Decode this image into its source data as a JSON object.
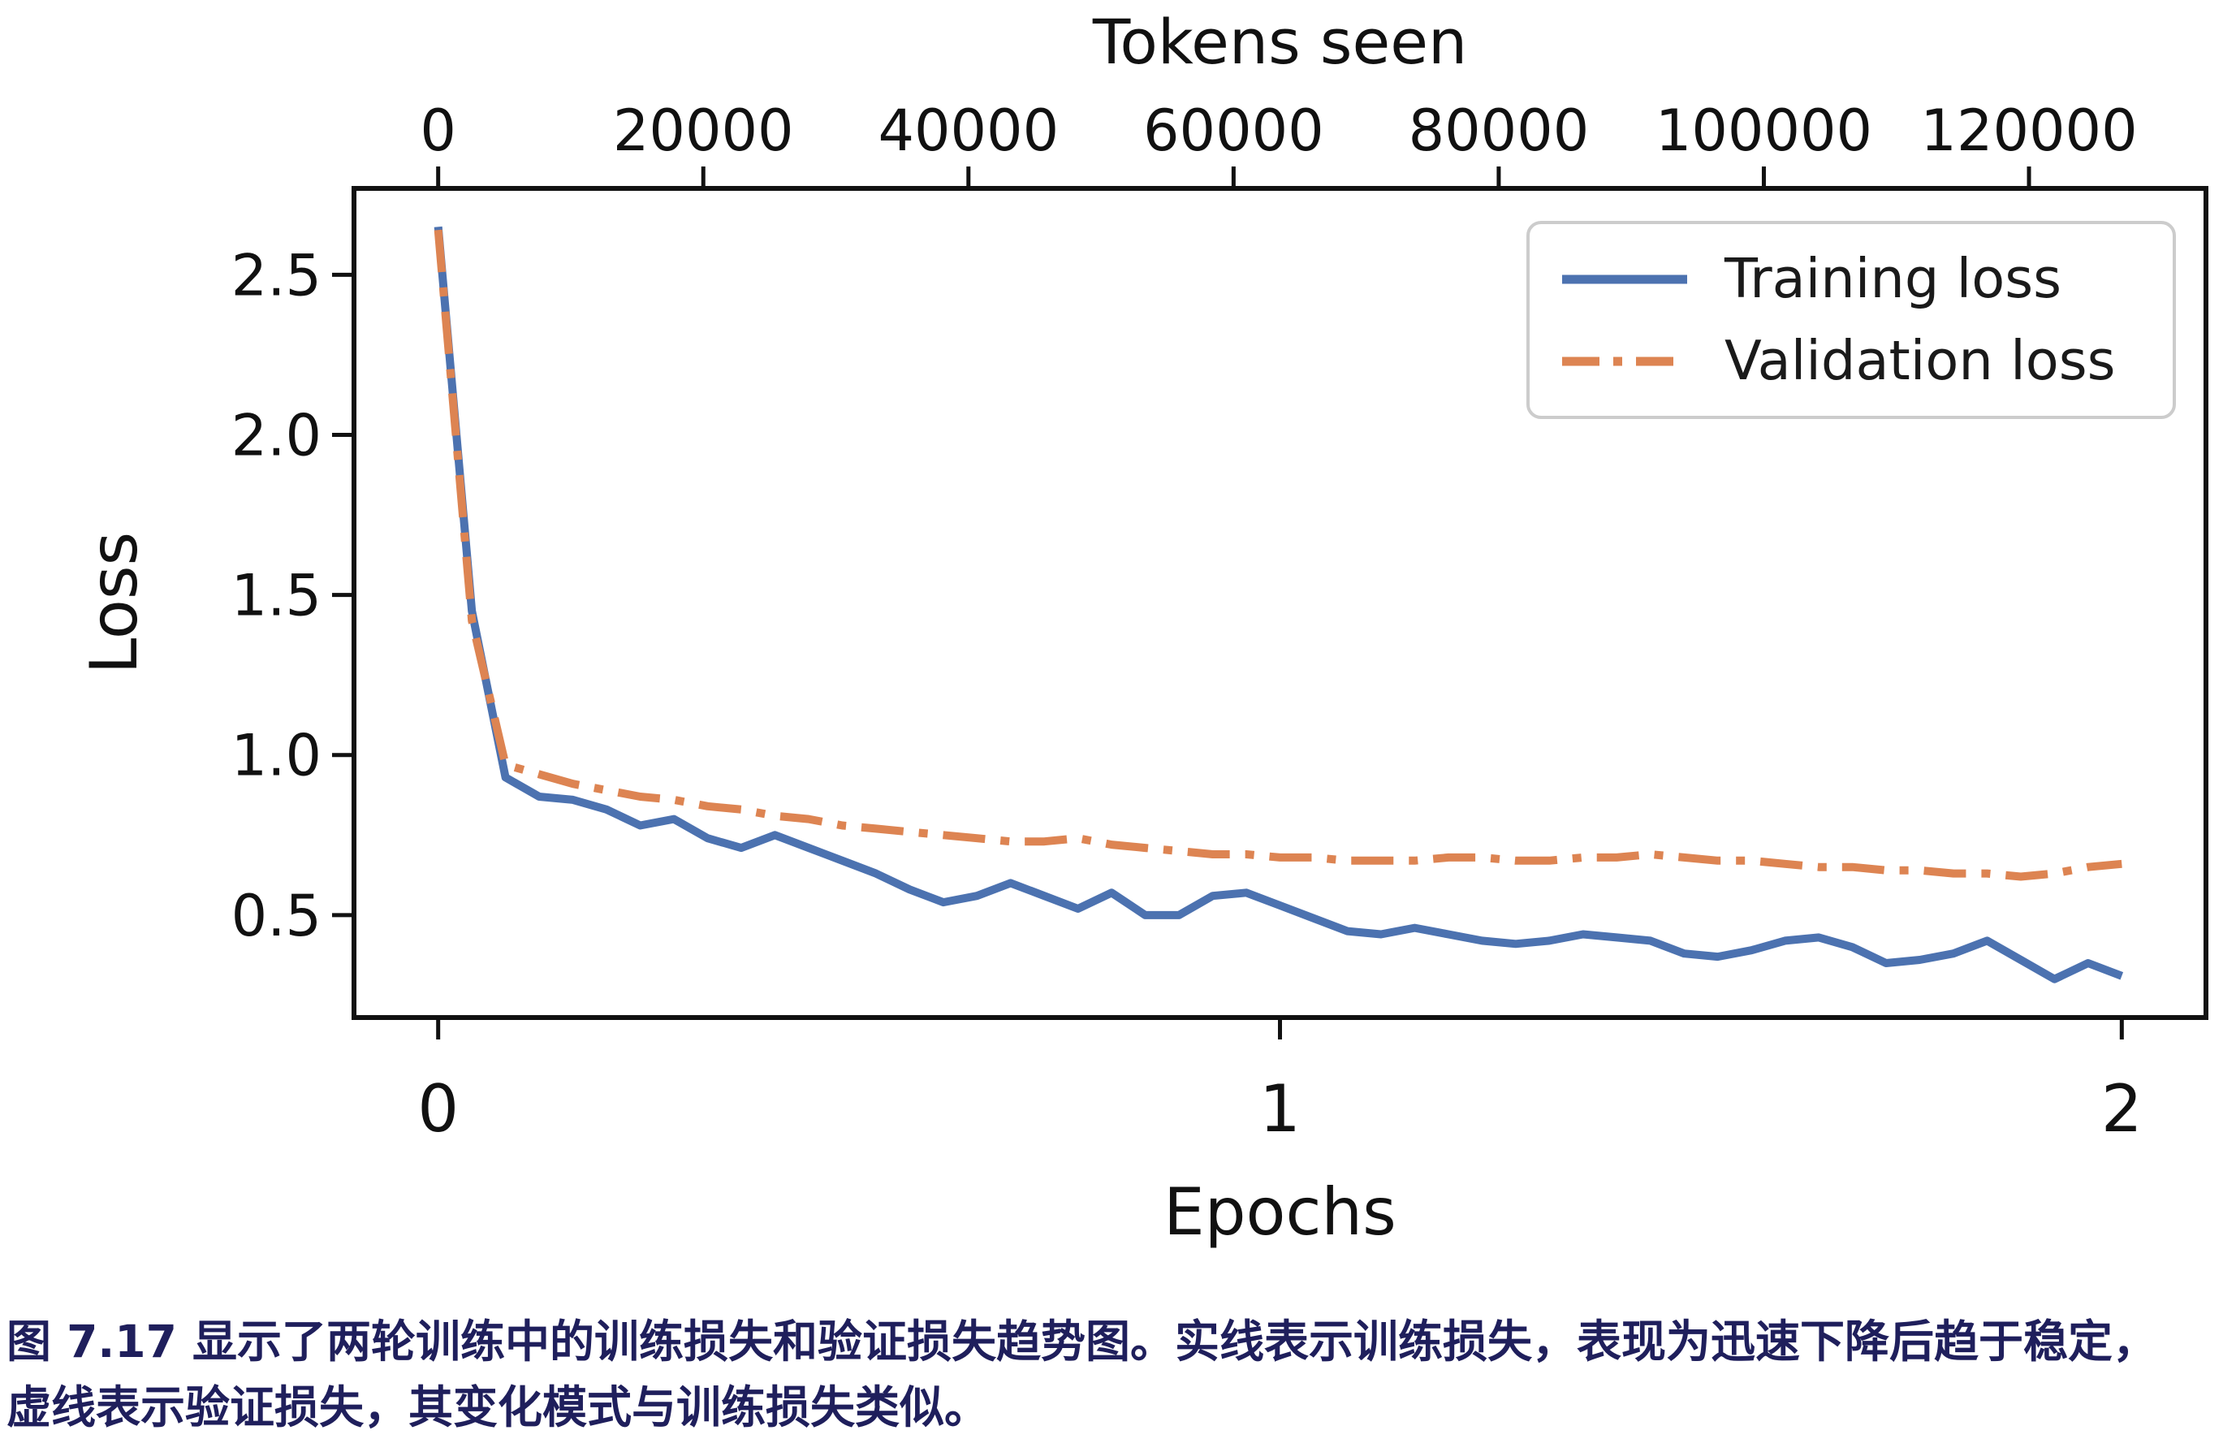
{
  "figure": {
    "caption": {
      "line1": "图 7.17 显示了两轮训练中的训练损失和验证损失趋势图。实线表示训练损失，表现为迅速下降后趋于稳定，",
      "line2": "虚线表示验证损失，其变化模式与训练损失类似。",
      "color": "#1f1f5c"
    }
  },
  "chart_data": {
    "type": "line",
    "title": "",
    "xlabel": "Epochs",
    "ylabel": "Loss",
    "top_axis_label": "Tokens seen",
    "grid": false,
    "legend_position": "upper right",
    "colors": {
      "training": "#4c72b0",
      "validation": "#dd8452",
      "axis": "#111111",
      "legend_border": "#cccccc"
    },
    "axes": {
      "x_bottom": {
        "label": "Epochs",
        "range": [
          -0.1,
          2.1
        ],
        "tick_values": [
          0,
          1,
          2
        ],
        "tick_labels": [
          "0",
          "1",
          "2"
        ]
      },
      "x_top": {
        "label": "Tokens seen",
        "tokens_per_epoch": 63500,
        "tick_values": [
          0,
          20000,
          40000,
          60000,
          80000,
          100000,
          120000
        ],
        "tick_labels": [
          "0",
          "20000",
          "40000",
          "60000",
          "80000",
          "100000",
          "120000"
        ]
      },
      "y": {
        "label": "Loss",
        "range": [
          0.18,
          2.77
        ],
        "tick_values": [
          2.5,
          2.0,
          1.5,
          1.0,
          0.5
        ],
        "tick_labels": [
          "2.5",
          "2.0",
          "1.5",
          "1.0",
          "0.5"
        ]
      }
    },
    "x_epochs": [
      0,
      0.04,
      0.08,
      0.12,
      0.16,
      0.2,
      0.24,
      0.28,
      0.32,
      0.36,
      0.4,
      0.44,
      0.48,
      0.52,
      0.56,
      0.6,
      0.64,
      0.68,
      0.72,
      0.76,
      0.8,
      0.84,
      0.88,
      0.92,
      0.96,
      1,
      1.04,
      1.08,
      1.12,
      1.16,
      1.2,
      1.24,
      1.28,
      1.32,
      1.36,
      1.4,
      1.44,
      1.48,
      1.52,
      1.56,
      1.6,
      1.64,
      1.68,
      1.72,
      1.76,
      1.8,
      1.84,
      1.88,
      1.92,
      1.96,
      2
    ],
    "series": [
      {
        "name": "Training loss",
        "style": "solid",
        "color": "#4c72b0",
        "values": [
          2.65,
          1.45,
          0.93,
          0.87,
          0.86,
          0.83,
          0.78,
          0.8,
          0.74,
          0.71,
          0.75,
          0.71,
          0.67,
          0.63,
          0.58,
          0.54,
          0.56,
          0.6,
          0.56,
          0.52,
          0.57,
          0.5,
          0.5,
          0.56,
          0.57,
          0.53,
          0.49,
          0.45,
          0.44,
          0.46,
          0.44,
          0.42,
          0.41,
          0.42,
          0.44,
          0.43,
          0.42,
          0.38,
          0.37,
          0.39,
          0.42,
          0.43,
          0.4,
          0.35,
          0.36,
          0.38,
          0.42,
          0.36,
          0.3,
          0.35,
          0.31
        ]
      },
      {
        "name": "Validation loss",
        "style": "dashdot",
        "color": "#dd8452",
        "values": [
          2.64,
          1.42,
          0.97,
          0.94,
          0.91,
          0.89,
          0.87,
          0.86,
          0.84,
          0.83,
          0.81,
          0.8,
          0.78,
          0.77,
          0.76,
          0.75,
          0.74,
          0.73,
          0.73,
          0.74,
          0.72,
          0.71,
          0.7,
          0.69,
          0.69,
          0.68,
          0.68,
          0.67,
          0.67,
          0.67,
          0.68,
          0.68,
          0.67,
          0.67,
          0.68,
          0.68,
          0.69,
          0.68,
          0.67,
          0.67,
          0.66,
          0.65,
          0.65,
          0.64,
          0.64,
          0.63,
          0.63,
          0.62,
          0.63,
          0.65,
          0.66
        ]
      }
    ]
  }
}
